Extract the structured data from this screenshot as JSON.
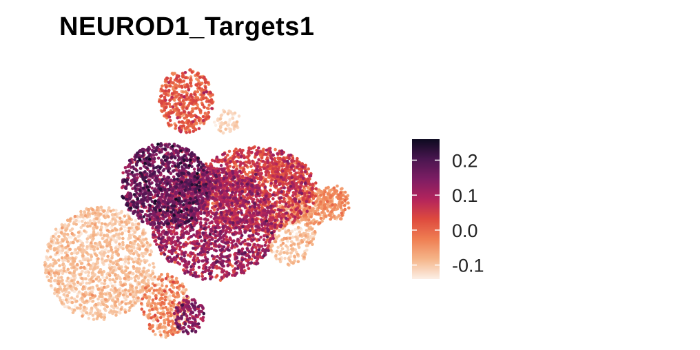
{
  "chart_data": {
    "type": "scatter",
    "title": "NEUROD1_Targets1",
    "xlabel": "",
    "ylabel": "",
    "grid": false,
    "legend_placement": "right",
    "color_scale": {
      "min": -0.14,
      "max": 0.26,
      "ticks": [
        0.2,
        0.1,
        0.0,
        -0.1
      ],
      "tick_labels": [
        "0.2",
        "0.1",
        "0.0",
        "-0.1"
      ],
      "palette": [
        "#fcefe6",
        "#f5b589",
        "#ef7e52",
        "#de4a3e",
        "#b3245c",
        "#7d1d63",
        "#4a1650",
        "#0d0a20"
      ]
    },
    "clusters": [
      {
        "label": "",
        "cx": -3.9,
        "cy": -0.7,
        "rx": 1.6,
        "ry": 1.6,
        "mean": -0.105,
        "sd": 0.02,
        "n": 1300
      },
      {
        "label": "",
        "cx": -2.0,
        "cy": 1.5,
        "rx": 1.3,
        "ry": 1.2,
        "mean": 0.15,
        "sd": 0.045,
        "n": 1100
      },
      {
        "label": "",
        "cx": -0.6,
        "cy": 0.4,
        "rx": 1.8,
        "ry": 1.6,
        "mean": 0.09,
        "sd": 0.04,
        "n": 1700
      },
      {
        "label": "",
        "cx": 0.6,
        "cy": 1.4,
        "rx": 1.8,
        "ry": 1.2,
        "mean": 0.04,
        "sd": 0.04,
        "n": 1300
      },
      {
        "label": "",
        "cx": -1.4,
        "cy": 3.9,
        "rx": 0.8,
        "ry": 0.9,
        "mean": 0.0,
        "sd": 0.035,
        "n": 450
      },
      {
        "label": "",
        "cx": -2.0,
        "cy": -1.9,
        "rx": 0.7,
        "ry": 0.9,
        "mean": -0.06,
        "sd": 0.04,
        "n": 350
      },
      {
        "label": "",
        "cx": -1.3,
        "cy": -2.2,
        "rx": 0.45,
        "ry": 0.5,
        "mean": 0.12,
        "sd": 0.04,
        "n": 140
      },
      {
        "label": "",
        "cx": 1.6,
        "cy": 0.2,
        "rx": 0.75,
        "ry": 0.95,
        "mean": -0.1,
        "sd": 0.02,
        "n": 330
      },
      {
        "label": "",
        "cx": 2.2,
        "cy": 0.9,
        "rx": 0.55,
        "ry": 0.55,
        "mean": -0.06,
        "sd": 0.02,
        "n": 180
      },
      {
        "label": "",
        "cx": 2.9,
        "cy": 1.0,
        "rx": 0.45,
        "ry": 0.5,
        "mean": -0.05,
        "sd": 0.025,
        "n": 150
      },
      {
        "label": "",
        "cx": -0.2,
        "cy": 3.3,
        "rx": 0.4,
        "ry": 0.35,
        "mean": -0.12,
        "sd": 0.015,
        "n": 60
      },
      {
        "label": "",
        "cx": 1.5,
        "cy": 1.9,
        "rx": 0.6,
        "ry": 0.4,
        "mean": 0.02,
        "sd": 0.03,
        "n": 160
      }
    ],
    "xlim": [
      -6,
      4
    ],
    "ylim": [
      -3,
      5
    ]
  }
}
